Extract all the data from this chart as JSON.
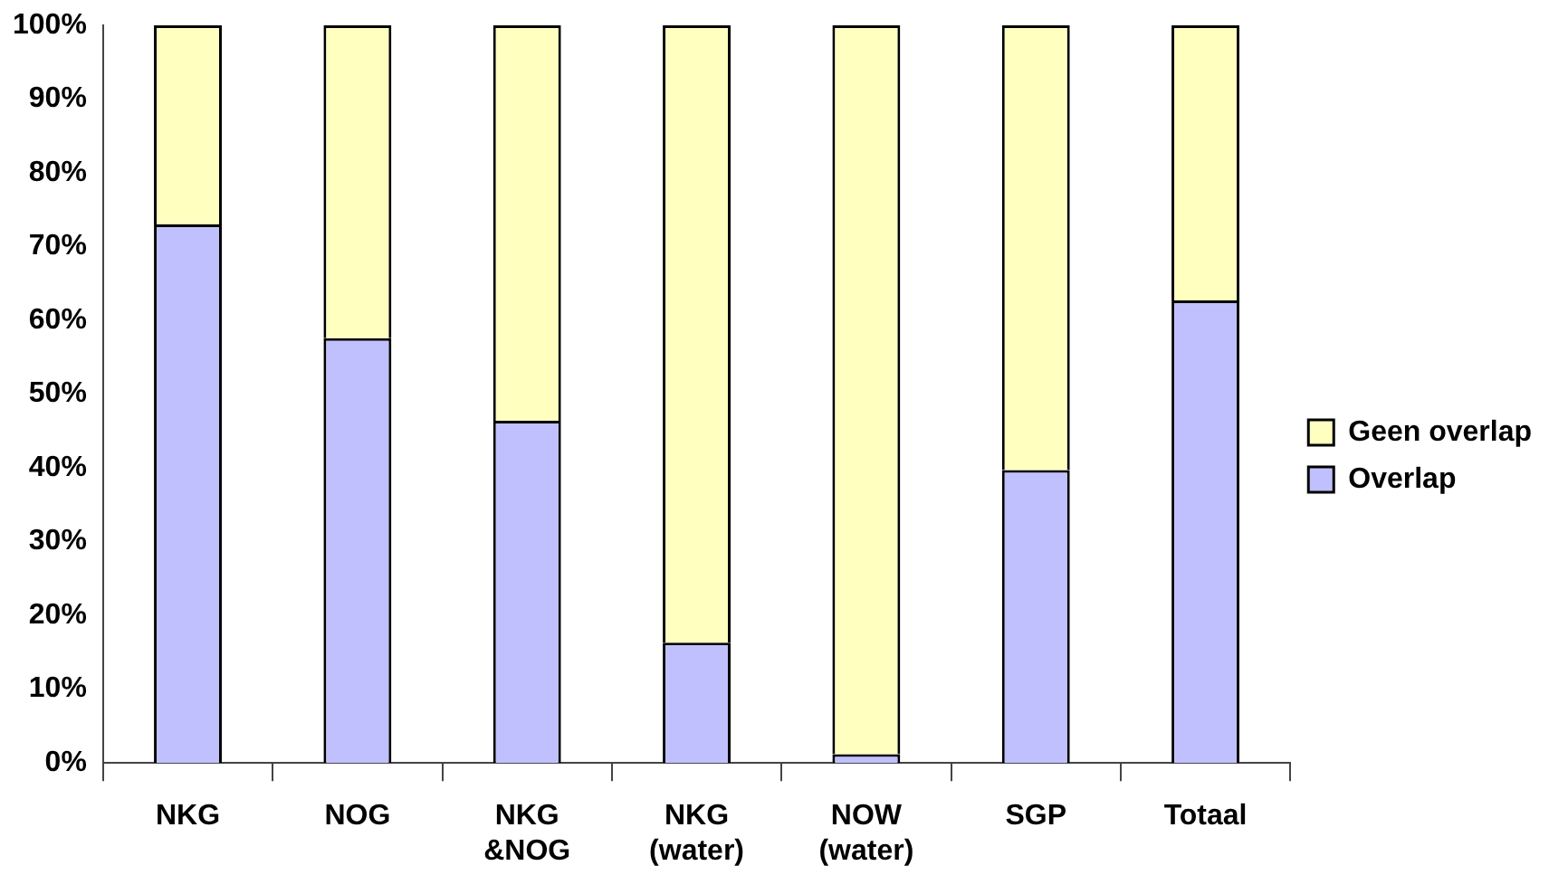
{
  "chart_data": {
    "type": "bar",
    "stacked": true,
    "categories": [
      "NKG",
      "NOG",
      "NKG &NOG",
      "NKG (water)",
      "NOW (water)",
      "SGP",
      "Totaal"
    ],
    "series": [
      {
        "name": "Overlap",
        "color": "#c0c0ff",
        "values": [
          73,
          57.6,
          46.4,
          16.3,
          1.2,
          39.7,
          62.7
        ]
      },
      {
        "name": "Geen overlap",
        "color": "#ffffc0",
        "values": [
          27,
          42.4,
          53.6,
          83.7,
          98.8,
          60.3,
          37.3
        ]
      }
    ],
    "ylim": [
      0,
      100
    ],
    "yticks": [
      {
        "value": 0,
        "label": "0%"
      },
      {
        "value": 10,
        "label": "10%"
      },
      {
        "value": 20,
        "label": "20%"
      },
      {
        "value": 30,
        "label": "30%"
      },
      {
        "value": 40,
        "label": "40%"
      },
      {
        "value": 50,
        "label": "50%"
      },
      {
        "value": 60,
        "label": "60%"
      },
      {
        "value": 70,
        "label": "70%"
      },
      {
        "value": 80,
        "label": "80%"
      },
      {
        "value": 90,
        "label": "90%"
      },
      {
        "value": 100,
        "label": "100%"
      }
    ],
    "grid": false,
    "legend": "right"
  }
}
